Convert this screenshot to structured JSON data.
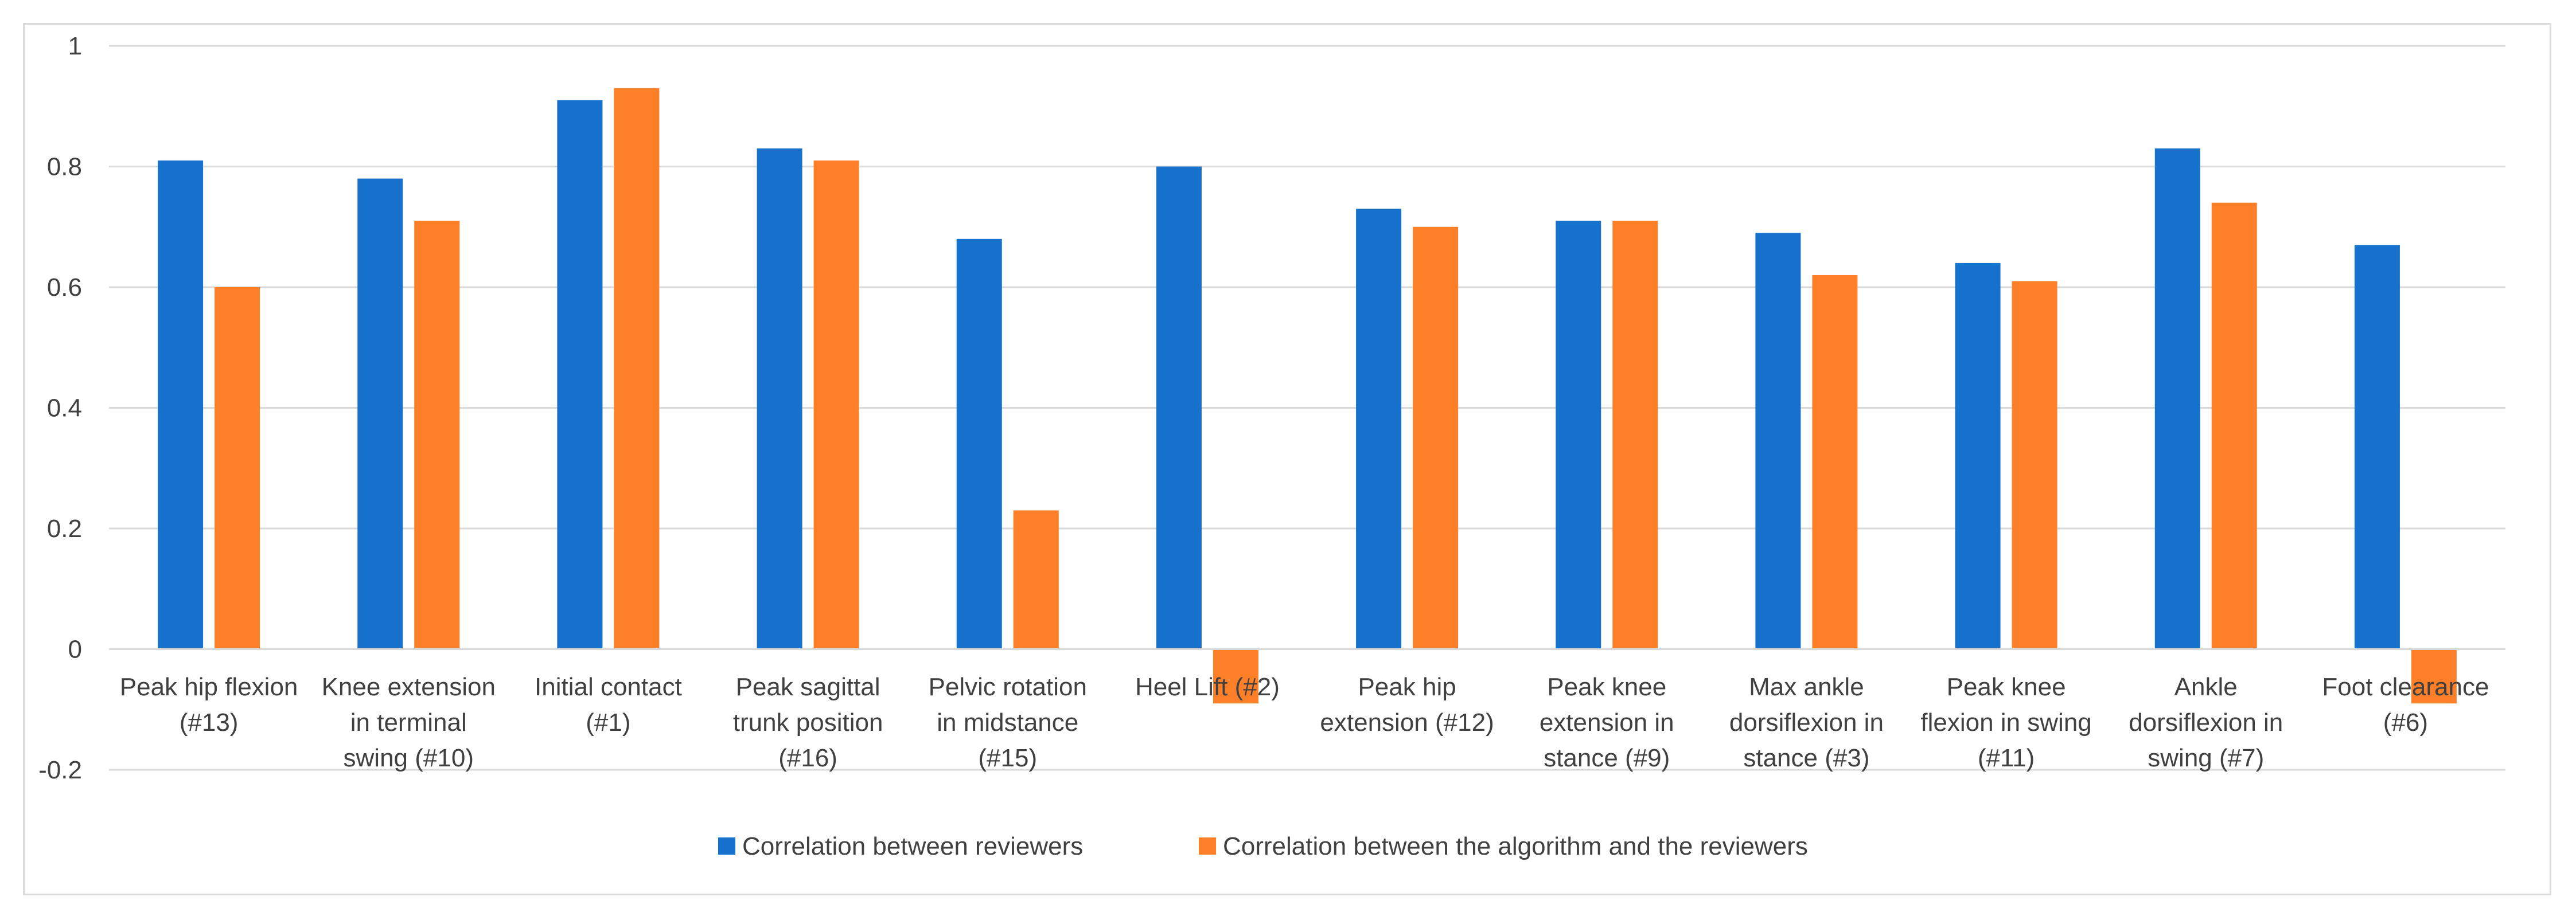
{
  "chart_data": {
    "type": "bar",
    "title": "",
    "xlabel": "",
    "ylabel": "",
    "ylim": [
      -0.2,
      1
    ],
    "yticks": [
      -0.2,
      0,
      0.2,
      0.4,
      0.6,
      0.8,
      1
    ],
    "ytick_labels": [
      "-0.2",
      "0",
      "0.2",
      "0.4",
      "0.6",
      "0.8",
      "1"
    ],
    "grid": true,
    "legend_position": "bottom",
    "categories": [
      [
        "Peak hip flexion",
        "(#13)"
      ],
      [
        "Knee extension",
        "in terminal",
        "swing (#10)"
      ],
      [
        "Initial contact",
        "(#1)"
      ],
      [
        "Peak sagittal",
        "trunk position",
        "(#16)"
      ],
      [
        "Pelvic rotation",
        "in midstance",
        "(#15)"
      ],
      [
        "Heel Lift (#2)"
      ],
      [
        "Peak hip",
        "extension (#12)"
      ],
      [
        "Peak knee",
        "extension in",
        "stance (#9)"
      ],
      [
        "Max ankle",
        "dorsiflexion in",
        "stance (#3)"
      ],
      [
        "Peak knee",
        "flexion in swing",
        "(#11)"
      ],
      [
        "Ankle",
        "dorsiflexion in",
        "swing (#7)"
      ],
      [
        "Foot clearance",
        "(#6)"
      ]
    ],
    "series": [
      {
        "name": "Correlation between reviewers",
        "color": "#1672cc",
        "values": [
          0.81,
          0.78,
          0.91,
          0.83,
          0.68,
          0.8,
          0.73,
          0.71,
          0.69,
          0.64,
          0.83,
          0.67
        ]
      },
      {
        "name": "Correlation between the algorithm and the reviewers",
        "color": "#fd7f28",
        "values": [
          0.6,
          0.71,
          0.93,
          0.81,
          0.23,
          -0.09,
          0.7,
          0.71,
          0.62,
          0.61,
          0.74,
          -0.09
        ]
      }
    ]
  }
}
